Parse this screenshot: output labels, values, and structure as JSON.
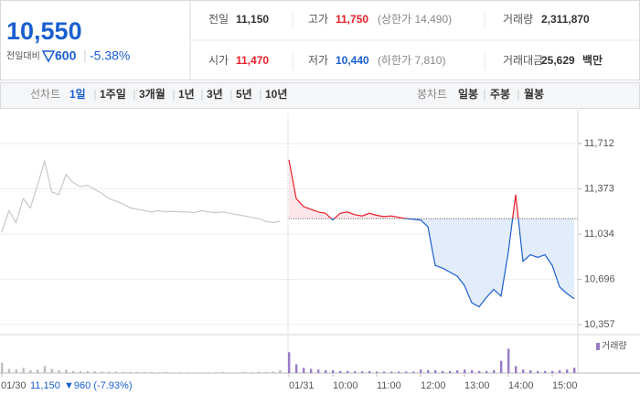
{
  "quote": {
    "price": "10,550",
    "change_label": "전일대비",
    "change": "600",
    "change_pct": "-5.38%"
  },
  "stats": [
    [
      {
        "label": "전일",
        "value": "11,150"
      },
      {
        "label": "고가",
        "value": "11,750",
        "note": "(상한가 14,490)"
      },
      {
        "label": "거래량",
        "value": "2,311,870"
      }
    ],
    [
      {
        "label": "시가",
        "value": "11,470"
      },
      {
        "label": "저가",
        "value": "10,440",
        "note": "(하한가 7,810)"
      },
      {
        "label": "거래대금",
        "value": "25,629",
        "unit": "백만"
      }
    ]
  ],
  "tabs": {
    "line_label": "선차트",
    "periods": [
      "1일",
      "1주일",
      "3개월",
      "1년",
      "3년",
      "5년",
      "10년"
    ],
    "selected": 0,
    "candle_label": "봉차트",
    "candles": [
      "일봉",
      "주봉",
      "월봉"
    ]
  },
  "chart_data": {
    "type": "line",
    "ylim": [
      10289,
      11965
    ],
    "yticks": [
      {
        "value": 11712,
        "label": "11,712"
      },
      {
        "value": 11373,
        "label": "11,373"
      },
      {
        "value": 11034,
        "label": "11,034"
      },
      {
        "value": 10696,
        "label": "10,696"
      },
      {
        "value": 10357,
        "label": "10,357"
      }
    ],
    "grid": true,
    "baseline": 11150,
    "categories": [
      "01/30",
      null,
      null,
      null,
      null,
      null,
      null,
      null,
      null,
      null,
      null,
      null,
      null,
      null,
      null,
      null,
      null,
      null,
      null,
      null,
      null,
      null,
      null,
      null,
      null,
      null,
      null,
      null,
      null,
      null,
      null,
      null,
      null,
      null,
      null,
      null,
      null,
      null,
      null,
      null,
      "01/31",
      null,
      null,
      null,
      null,
      null,
      "10:00",
      null,
      null,
      null,
      null,
      null,
      "11:00",
      null,
      null,
      null,
      null,
      null,
      "12:00",
      null,
      null,
      null,
      null,
      null,
      "13:00",
      null,
      null,
      null,
      null,
      null,
      "14:00",
      null,
      null,
      null,
      null,
      null,
      "15:00",
      null,
      null,
      null
    ],
    "series": [
      {
        "color": "#c8c8c8",
        "values": [
          11050,
          11210,
          11120,
          11300,
          11230,
          11400,
          11580,
          11350,
          11330,
          11480,
          11420,
          11390,
          11400,
          11370,
          11340,
          11300,
          11280,
          11260,
          11230,
          11220,
          11210,
          11200,
          11210,
          11200,
          11205,
          11200,
          11200,
          11195,
          11210,
          11200,
          11195,
          11200,
          11190,
          11180,
          11170,
          11160,
          11150,
          11130,
          11120,
          11130,
          null,
          null,
          null,
          null,
          null,
          null,
          null,
          null,
          null,
          null,
          null,
          null,
          null,
          null,
          null,
          null,
          null,
          null,
          null,
          null,
          null,
          null,
          null,
          null,
          null,
          null,
          null,
          null,
          null,
          null,
          null,
          null,
          null,
          null,
          null,
          null,
          null,
          null,
          null,
          null
        ]
      },
      {
        "color_up": "#e8202a",
        "color_down": "#1c5fce",
        "fill_up": "#fde6ea",
        "fill_down": "#e2ecfa",
        "values": [
          null,
          null,
          null,
          null,
          null,
          null,
          null,
          null,
          null,
          null,
          null,
          null,
          null,
          null,
          null,
          null,
          null,
          null,
          null,
          null,
          null,
          null,
          null,
          null,
          null,
          null,
          null,
          null,
          null,
          null,
          null,
          null,
          null,
          null,
          null,
          null,
          null,
          null,
          null,
          null,
          11590,
          11300,
          11240,
          11220,
          11200,
          11190,
          11140,
          11190,
          11200,
          11180,
          11170,
          11190,
          11175,
          11165,
          11170,
          11160,
          11150,
          11145,
          11140,
          11090,
          10800,
          10780,
          10750,
          10720,
          10650,
          10520,
          10490,
          10560,
          10620,
          10570,
          10900,
          11330,
          10830,
          10880,
          10860,
          10880,
          10800,
          10640,
          10590,
          10550
        ]
      }
    ],
    "volume": {
      "label": "거래량",
      "colors": [
        "#bdbdbd",
        "#9a7cc8"
      ],
      "ylim": [
        0,
        100
      ],
      "values": [
        30,
        12,
        10,
        15,
        8,
        10,
        20,
        12,
        8,
        10,
        6,
        5,
        6,
        5,
        4,
        4,
        4,
        3,
        3,
        3,
        3,
        3,
        2,
        3,
        2,
        2,
        2,
        2,
        2,
        2,
        2,
        3,
        2,
        2,
        3,
        2,
        3,
        3,
        4,
        8,
        60,
        25,
        15,
        12,
        10,
        8,
        8,
        6,
        6,
        5,
        5,
        5,
        4,
        4,
        4,
        4,
        4,
        4,
        10,
        8,
        8,
        6,
        6,
        8,
        10,
        8,
        6,
        6,
        8,
        35,
        70,
        20,
        10,
        8,
        6,
        6,
        6,
        8,
        10,
        15
      ]
    },
    "prev_summary": {
      "close": "11,150",
      "change": "▼960 (-7.93%)"
    }
  }
}
